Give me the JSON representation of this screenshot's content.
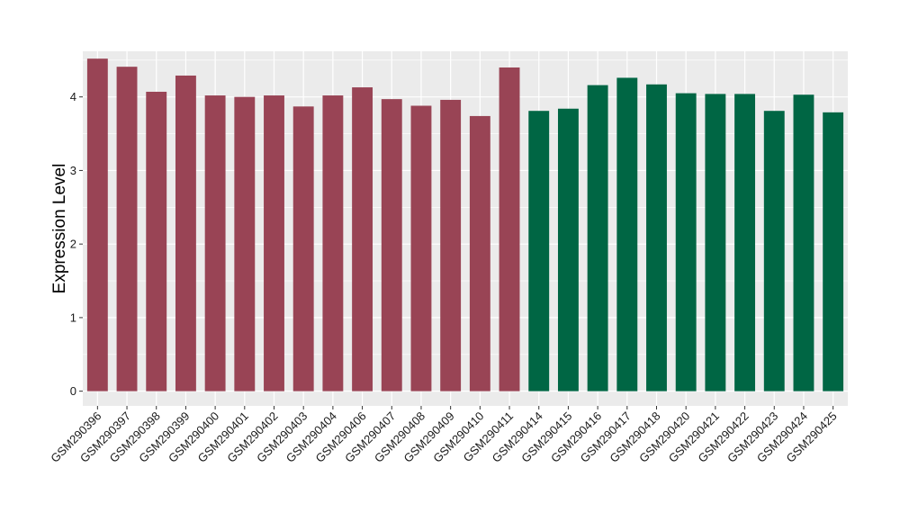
{
  "chart_data": {
    "type": "bar",
    "title": "",
    "xlabel": "",
    "ylabel": "Expression Level",
    "ylim": [
      -0.2,
      4.62
    ],
    "yticks": [
      0,
      1,
      2,
      3,
      4
    ],
    "grid": true,
    "legend": "none",
    "categories": [
      "GSM290396",
      "GSM290397",
      "GSM290398",
      "GSM290399",
      "GSM290400",
      "GSM290401",
      "GSM290402",
      "GSM290403",
      "GSM290404",
      "GSM290406",
      "GSM290407",
      "GSM290408",
      "GSM290409",
      "GSM290410",
      "GSM290411",
      "GSM290414",
      "GSM290415",
      "GSM290416",
      "GSM290417",
      "GSM290418",
      "GSM290420",
      "GSM290421",
      "GSM290422",
      "GSM290423",
      "GSM290424",
      "GSM290425"
    ],
    "values": [
      4.52,
      4.41,
      4.07,
      4.29,
      4.02,
      4.0,
      4.02,
      3.87,
      4.02,
      4.13,
      3.97,
      3.88,
      3.96,
      3.74,
      4.4,
      3.81,
      3.84,
      4.16,
      4.26,
      4.17,
      4.05,
      4.04,
      4.04,
      3.81,
      4.03,
      3.79
    ],
    "groups": [
      0,
      0,
      0,
      0,
      0,
      0,
      0,
      0,
      0,
      0,
      0,
      0,
      0,
      0,
      0,
      1,
      1,
      1,
      1,
      1,
      1,
      1,
      1,
      1,
      1,
      1
    ],
    "colors": {
      "group_0": "#994455",
      "group_1": "#006644",
      "panel_background": "#ebebeb",
      "gridline": "#ffffff"
    }
  }
}
